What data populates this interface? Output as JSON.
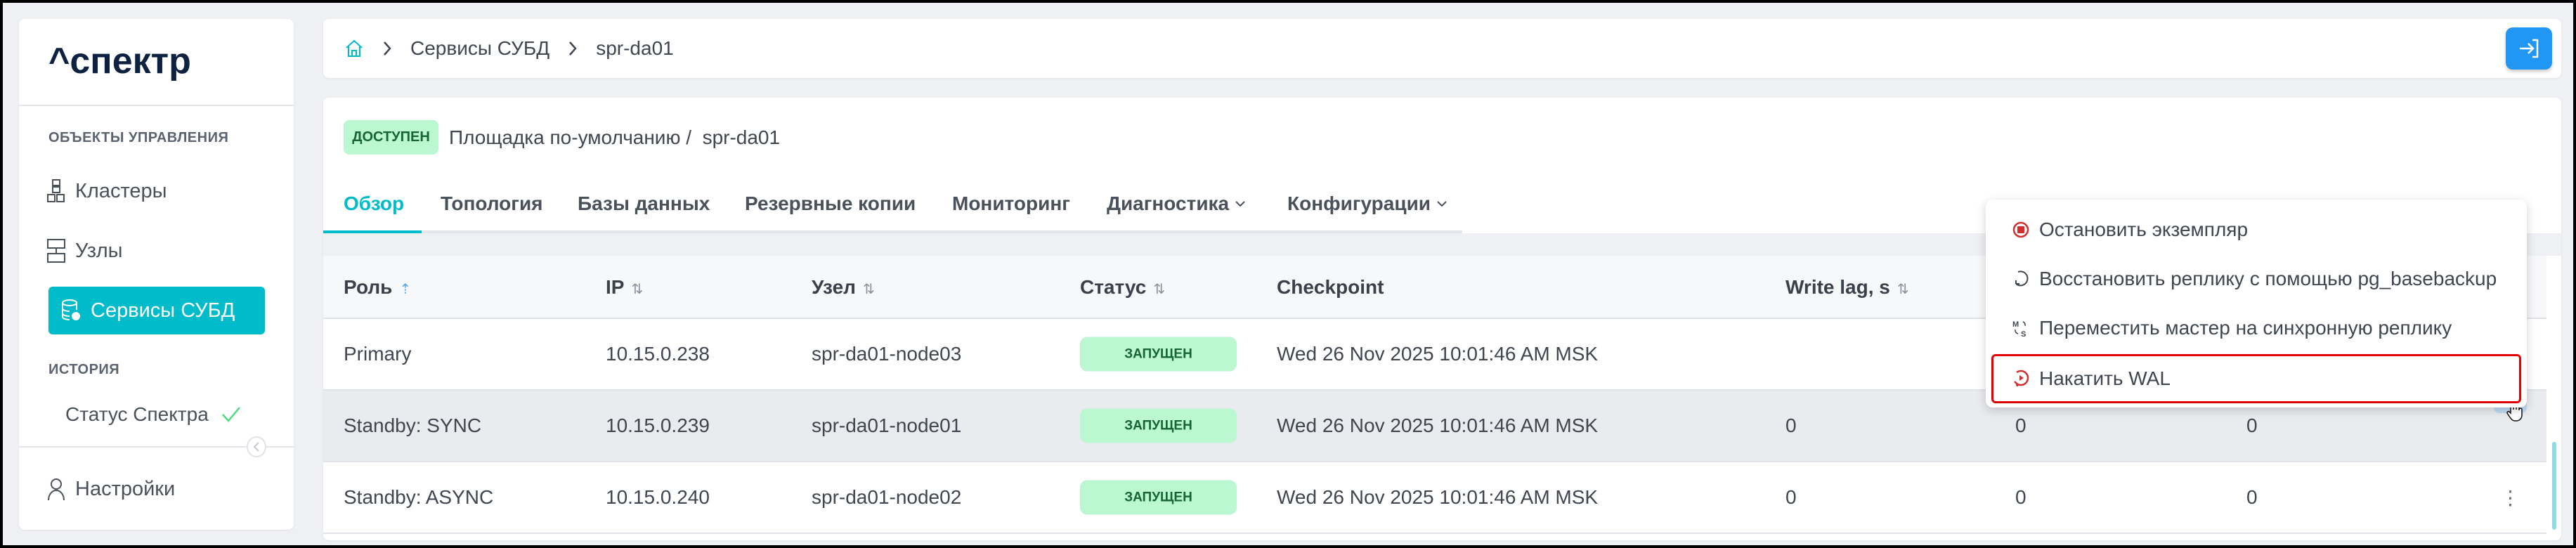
{
  "sidebar": {
    "logo": "^спектр",
    "section_objects": "ОБЪЕКТЫ УПРАВЛЕНИЯ",
    "items": [
      {
        "label": "Кластеры",
        "icon": "clusters-icon"
      },
      {
        "label": "Узлы",
        "icon": "nodes-icon"
      },
      {
        "label": "Сервисы СУБД",
        "icon": "db-services-icon",
        "active": true
      }
    ],
    "section_history": "ИСТОРИЯ",
    "status_label": "Статус Спектра",
    "settings_label": "Настройки"
  },
  "breadcrumb": {
    "items": [
      "Сервисы СУБД",
      "spr-da01"
    ]
  },
  "header": {
    "status_badge": "ДОСТУПЕН",
    "title": "Площадка по-умолчанию /  spr-da01"
  },
  "tabs": [
    {
      "label": "Обзор",
      "active": true
    },
    {
      "label": "Топология"
    },
    {
      "label": "Базы данных"
    },
    {
      "label": "Резервные копии"
    },
    {
      "label": "Мониторинг"
    },
    {
      "label": "Диагностика",
      "dropdown": true
    },
    {
      "label": "Конфигурации",
      "dropdown": true
    }
  ],
  "table": {
    "columns": [
      "Роль",
      "IP",
      "Узел",
      "Статус",
      "Checkpoint",
      "Write lag, s"
    ],
    "rows": [
      {
        "role": "Primary",
        "ip": "10.15.0.238",
        "node": "spr-da01-node03",
        "status": "ЗАПУЩЕН",
        "checkpoint": "Wed 26 Nov 2025 10:01:46 AM MSK",
        "write_lag": "",
        "c7": "",
        "c8": ""
      },
      {
        "role": "Standby: SYNC",
        "ip": "10.15.0.239",
        "node": "spr-da01-node01",
        "status": "ЗАПУЩЕН",
        "checkpoint": "Wed 26 Nov 2025 10:01:46 AM MSK",
        "write_lag": "0",
        "c7": "0",
        "c8": "0"
      },
      {
        "role": "Standby: ASYNC",
        "ip": "10.15.0.240",
        "node": "spr-da01-node02",
        "status": "ЗАПУЩЕН",
        "checkpoint": "Wed 26 Nov 2025 10:01:46 AM MSK",
        "write_lag": "0",
        "c7": "0",
        "c8": "0"
      }
    ]
  },
  "context_menu": {
    "items": [
      {
        "label": "Остановить экземпляр",
        "icon": "stop-icon"
      },
      {
        "label": "Восстановить реплику с помощью pg_basebackup",
        "icon": "restore-icon"
      },
      {
        "label": "Переместить мастер на синхронную реплику",
        "icon": "switch-master-icon"
      },
      {
        "label": "Накатить WAL",
        "icon": "replay-wal-icon",
        "highlighted": true
      }
    ]
  },
  "colors": {
    "accent": "#00bcca",
    "badge_bg": "#bbf7d0",
    "badge_text": "#166534",
    "stop": "#d32f2f",
    "login_button": "#2196f3",
    "highlight": "#e00000"
  }
}
